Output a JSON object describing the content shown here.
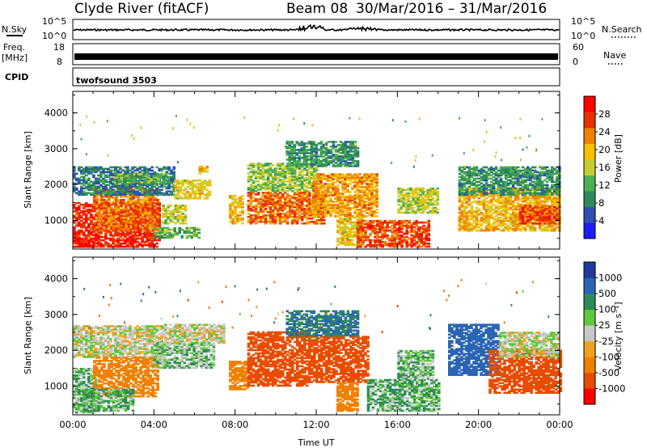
{
  "header": {
    "station": "Clyde River (fitACF)",
    "beam": "Beam 08",
    "date_range": "30/Mar/2016 – 31/Mar/2016"
  },
  "strip_nsky": {
    "left_label": "N.Sky",
    "left_ticks": [
      "10^5",
      "10^0"
    ],
    "right_ticks": [
      "10^5",
      "10^0"
    ],
    "right_label": "N.Search"
  },
  "strip_freq": {
    "left_label_1": "Freq.",
    "left_label_2": "[MHz]",
    "left_ticks": [
      "18",
      "8"
    ],
    "right_ticks": [
      "60",
      "0"
    ],
    "right_label": "Nave"
  },
  "strip_cpid": {
    "label": "CPID",
    "value": "twofsound 3503"
  },
  "colors": {
    "power_scale": [
      "#1b1bff",
      "#2d50b4",
      "#2e8b57",
      "#4caf50",
      "#c8cc30",
      "#f7c000",
      "#f08000",
      "#e83000",
      "#ff0000"
    ],
    "velocity_scale": [
      "#1e3ca0",
      "#2a64b4",
      "#2e8b57",
      "#5cc83a",
      "#c8c8c8",
      "#f0a020",
      "#f08000",
      "#e84c00",
      "#ff0000"
    ]
  },
  "chart_data": [
    {
      "type": "heatmap",
      "name": "power",
      "ylabel": "Slant Range [km]",
      "yticks": [
        1000,
        2000,
        3000,
        4000
      ],
      "ylim": [
        200,
        4600
      ],
      "xticks": [
        "00:00",
        "04:00",
        "08:00",
        "12:00",
        "16:00",
        "20:00",
        "00:00"
      ],
      "xlim_hours": [
        0,
        24
      ],
      "colorbar": {
        "label": "Power [dB]",
        "ticks": [
          "4",
          "8",
          "12",
          "16",
          "20",
          "24",
          "28"
        ],
        "range": [
          0,
          32
        ]
      },
      "regions": [
        {
          "t0": 0.0,
          "t1": 4.3,
          "r0": 250,
          "r1": 1500,
          "level": 28
        },
        {
          "t0": 0.0,
          "t1": 1.2,
          "r0": 250,
          "r1": 500,
          "level": 30
        },
        {
          "t0": 1.0,
          "t1": 4.2,
          "r0": 700,
          "r1": 1900,
          "level": 24
        },
        {
          "t0": 0.0,
          "t1": 5.0,
          "r0": 1700,
          "r1": 2500,
          "level": 8
        },
        {
          "t0": 2.0,
          "t1": 4.6,
          "r0": 2000,
          "r1": 2300,
          "level": 12
        },
        {
          "t0": 4.4,
          "t1": 5.5,
          "r0": 900,
          "r1": 1400,
          "level": 16
        },
        {
          "t0": 5.0,
          "t1": 6.8,
          "r0": 1600,
          "r1": 2100,
          "level": 18
        },
        {
          "t0": 4.0,
          "t1": 6.2,
          "r0": 500,
          "r1": 800,
          "level": 12
        },
        {
          "t0": 6.2,
          "t1": 6.6,
          "r0": 2300,
          "r1": 2500,
          "level": 20
        },
        {
          "t0": 7.7,
          "t1": 8.4,
          "r0": 900,
          "r1": 1700,
          "level": 20
        },
        {
          "t0": 8.6,
          "t1": 12.4,
          "r0": 900,
          "r1": 1800,
          "level": 24
        },
        {
          "t0": 8.6,
          "t1": 12.0,
          "r0": 1800,
          "r1": 2600,
          "level": 14
        },
        {
          "t0": 10.5,
          "t1": 14.0,
          "r0": 2500,
          "r1": 3200,
          "level": 10
        },
        {
          "t0": 11.8,
          "t1": 15.0,
          "r0": 1100,
          "r1": 2300,
          "level": 22
        },
        {
          "t0": 13.0,
          "t1": 14.2,
          "r0": 300,
          "r1": 1100,
          "level": 18
        },
        {
          "t0": 14.0,
          "t1": 17.5,
          "r0": 250,
          "r1": 1000,
          "level": 26
        },
        {
          "t0": 16.0,
          "t1": 18.0,
          "r0": 1200,
          "r1": 1900,
          "level": 16
        },
        {
          "t0": 19.0,
          "t1": 24.0,
          "r0": 700,
          "r1": 1900,
          "level": 20
        },
        {
          "t0": 19.0,
          "t1": 24.0,
          "r0": 1700,
          "r1": 2500,
          "level": 10
        },
        {
          "t0": 22.0,
          "t1": 24.0,
          "r0": 900,
          "r1": 1400,
          "level": 26
        }
      ]
    },
    {
      "type": "heatmap",
      "name": "velocity",
      "ylabel": "Slant Range [km]",
      "yticks": [
        1000,
        2000,
        3000,
        4000
      ],
      "ylim": [
        200,
        4600
      ],
      "xticks": [
        "00:00",
        "04:00",
        "08:00",
        "12:00",
        "16:00",
        "20:00",
        "00:00"
      ],
      "xlim_hours": [
        0,
        24
      ],
      "xlabel": "Time UT",
      "colorbar": {
        "label": "Velocity [m s⁻¹]",
        "ticks": [
          "1000",
          "500",
          "100",
          "25",
          "-25",
          "-100",
          "-500",
          "-1000"
        ]
      },
      "regions": [
        {
          "t0": 0.0,
          "t1": 4.5,
          "r0": 1800,
          "r1": 2700,
          "level": 0
        },
        {
          "t0": 0.0,
          "t1": 1.2,
          "r0": 250,
          "r1": 1500,
          "level": 50
        },
        {
          "t0": 1.0,
          "t1": 4.2,
          "r0": 700,
          "r1": 1800,
          "level": -150
        },
        {
          "t0": 0.5,
          "t1": 3.0,
          "r0": 300,
          "r1": 900,
          "level": 60
        },
        {
          "t0": 4.0,
          "t1": 7.0,
          "r0": 1500,
          "r1": 2200,
          "level": 40
        },
        {
          "t0": 4.5,
          "t1": 7.5,
          "r0": 2200,
          "r1": 2700,
          "level": 0
        },
        {
          "t0": 7.7,
          "t1": 8.6,
          "r0": 900,
          "r1": 1700,
          "level": -150
        },
        {
          "t0": 8.6,
          "t1": 11.6,
          "r0": 1000,
          "r1": 2500,
          "level": -600
        },
        {
          "t0": 11.6,
          "t1": 14.5,
          "r0": 1100,
          "r1": 2400,
          "level": -450
        },
        {
          "t0": 10.5,
          "t1": 14.0,
          "r0": 2400,
          "r1": 3100,
          "level": 300
        },
        {
          "t0": 13.0,
          "t1": 14.0,
          "r0": 300,
          "r1": 1100,
          "level": -150
        },
        {
          "t0": 14.5,
          "t1": 18.0,
          "r0": 300,
          "r1": 1200,
          "level": 60
        },
        {
          "t0": 16.0,
          "t1": 17.8,
          "r0": 1200,
          "r1": 2000,
          "level": 50
        },
        {
          "t0": 18.5,
          "t1": 21.0,
          "r0": 1300,
          "r1": 2700,
          "level": 600
        },
        {
          "t0": 20.5,
          "t1": 24.0,
          "r0": 800,
          "r1": 2000,
          "level": -400
        },
        {
          "t0": 21.0,
          "t1": 24.0,
          "r0": 1800,
          "r1": 2500,
          "level": 0
        }
      ]
    }
  ]
}
